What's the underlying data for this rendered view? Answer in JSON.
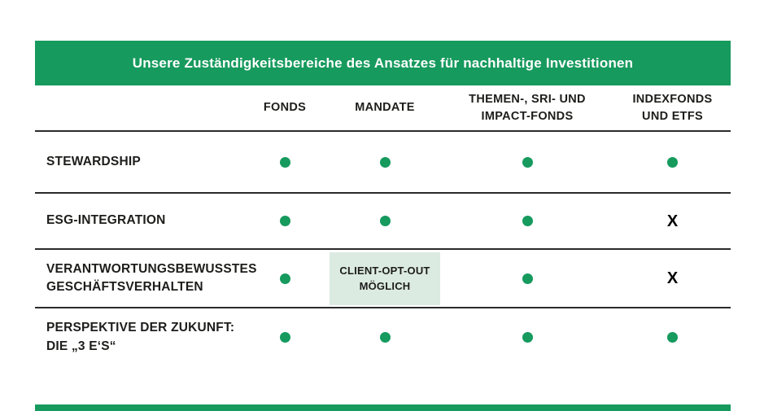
{
  "title": "Unsere Zuständigkeitsbereiche des Ansatzes für nachhaltige Investitionen",
  "columns": [
    {
      "id": "fonds",
      "lines": [
        "FONDS"
      ]
    },
    {
      "id": "mandate",
      "lines": [
        "MANDATE"
      ]
    },
    {
      "id": "themen-sri-impact-fonds",
      "lines": [
        "THEMEN-, SRI- UND",
        "IMPACT-FONDS"
      ]
    },
    {
      "id": "indexfonds-etfs",
      "lines": [
        "INDEXFONDS",
        "UND ETFS"
      ]
    }
  ],
  "rows": [
    {
      "id": "stewardship",
      "label_lines": [
        "STEWARDSHIP"
      ],
      "cells": [
        "dot",
        "dot",
        "dot",
        "dot"
      ]
    },
    {
      "id": "esg-integration",
      "label_lines": [
        "ESG-INTEGRATION"
      ],
      "cells": [
        "dot",
        "dot",
        "dot",
        "x"
      ]
    },
    {
      "id": "verantwortungsbewusstes-geschaeftsverhalten",
      "label_lines": [
        "VERANTWORTUNGSBEWUSSTES",
        "GESCHÄFTSVERHALTEN"
      ],
      "cells": [
        "dot",
        "badge",
        "dot",
        "x"
      ],
      "badge_lines": [
        "CLIENT-OPT-OUT",
        "MÖGLICH"
      ]
    },
    {
      "id": "perspektive-der-zukunft",
      "label_lines": [
        "PERSPEKTIVE DER ZUKUNFT:",
        "DIE „3 E‘S“"
      ],
      "cells": [
        "dot",
        "dot",
        "dot",
        "dot"
      ]
    }
  ],
  "marks": {
    "x_label": "X"
  },
  "colors": {
    "header_green": "#179a5e",
    "dot_green": "#169a5e",
    "light_green_cell": "#dcebe2",
    "rule": "#2b2b2b",
    "text": "#1d1d1b",
    "title_text": "#ffffff"
  }
}
